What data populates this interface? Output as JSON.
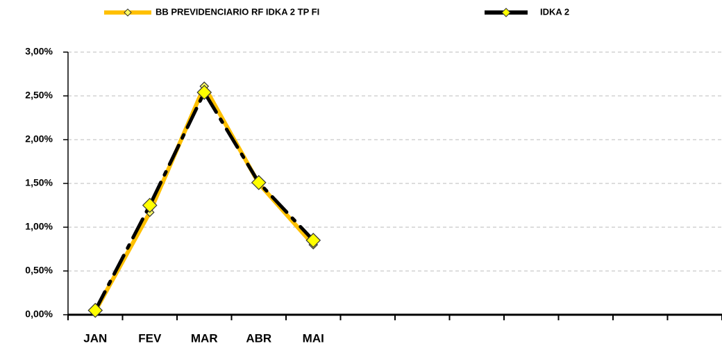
{
  "chart_data": {
    "type": "line",
    "categories": [
      "JAN",
      "FEV",
      "MAR",
      "ABR",
      "MAI",
      null,
      null,
      null,
      null,
      null,
      null,
      null
    ],
    "series": [
      {
        "name": "BB PREVIDENCIARIO RF IDKA 2 TP FI",
        "color": "#ffc000",
        "marker_color": "#ffff66",
        "values": [
          0.04,
          1.17,
          2.61,
          1.5,
          0.8,
          null,
          null,
          null,
          null,
          null,
          null,
          null
        ]
      },
      {
        "name": "IDKA 2",
        "color": "#000000",
        "marker_color": "#ffff00",
        "values": [
          0.05,
          1.25,
          2.54,
          1.51,
          0.85,
          null,
          null,
          null,
          null,
          null,
          null,
          null
        ]
      }
    ],
    "ylim": [
      0,
      3
    ],
    "yticks": [
      {
        "value": 0,
        "label": "0,00%"
      },
      {
        "value": 0.5,
        "label": "0,50%"
      },
      {
        "value": 1,
        "label": "1,00%"
      },
      {
        "value": 1.5,
        "label": "1,50%"
      },
      {
        "value": 2,
        "label": "2,00%"
      },
      {
        "value": 2.5,
        "label": "2,50%"
      },
      {
        "value": 3,
        "label": "3,00%"
      }
    ],
    "grid": true,
    "legend": "top"
  }
}
